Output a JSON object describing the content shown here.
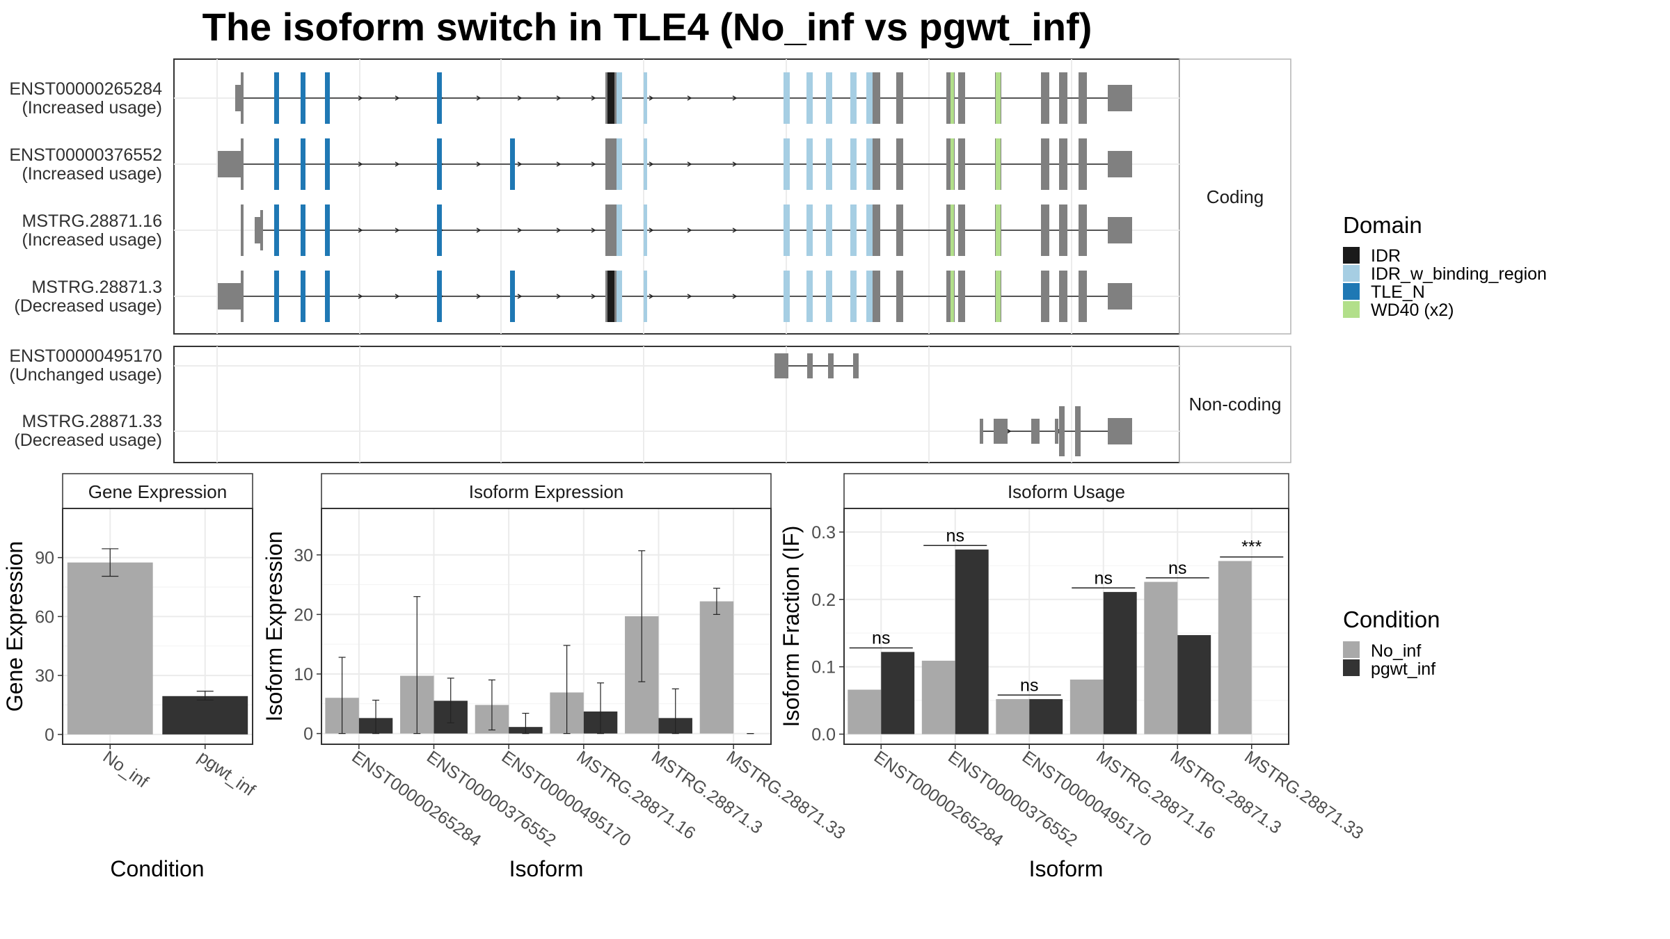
{
  "title": "The isoform switch in TLE4 (No_inf vs pgwt_inf)",
  "colors": {
    "IDR": "#1a1a1a",
    "IDR_w_binding_region": "#a6cee3",
    "TLE_N": "#1f78b4",
    "WD40 (x2)": "#b2df8a",
    "exon": "#808080",
    "No_inf": "#a9a9a9",
    "pgwt_inf": "#333333"
  },
  "transcript_panel": {
    "groups": [
      {
        "strip": "Coding",
        "isoforms": [
          {
            "id": "ENST00000265284",
            "usage": "(Increased usage)",
            "coding": true,
            "first": "small",
            "idr": true
          },
          {
            "id": "ENST00000376552",
            "usage": "(Increased usage)",
            "coding": true,
            "first": "big",
            "idr": false,
            "extra_tle": true
          },
          {
            "id": "MSTRG.28871.16",
            "usage": "(Increased usage)",
            "coding": true,
            "first": "small2",
            "idr": false
          },
          {
            "id": "MSTRG.28871.3",
            "usage": "(Decreased usage)",
            "coding": true,
            "first": "big",
            "idr": true,
            "extra_tle": true
          }
        ]
      },
      {
        "strip": "Non-coding",
        "isoforms": [
          {
            "id": "ENST00000495170",
            "usage": "(Unchanged usage)",
            "coding": false,
            "kind": "short"
          },
          {
            "id": "MSTRG.28871.33",
            "usage": "(Decreased usage)",
            "coding": false,
            "kind": "tail"
          }
        ]
      }
    ]
  },
  "legend_domain": {
    "title": "Domain",
    "items": [
      "IDR",
      "IDR_w_binding_region",
      "TLE_N",
      "WD40 (x2)"
    ]
  },
  "legend_condition": {
    "title": "Condition",
    "items": [
      "No_inf",
      "pgwt_inf"
    ]
  },
  "chart_data": [
    {
      "type": "bar",
      "panel": "Gene Expression",
      "categories": [
        "No_inf",
        "pgwt_inf"
      ],
      "values": [
        87.5,
        19.5
      ],
      "err_low": [
        80.5,
        17.5
      ],
      "err_high": [
        94.5,
        22.0
      ],
      "xlabel": "Condition",
      "ylabel": "Gene Expression",
      "ylim": [
        -5,
        115
      ],
      "yticks": [
        0,
        30,
        60,
        90
      ],
      "grid": true
    },
    {
      "type": "bar",
      "panel": "Isoform Expression",
      "categories": [
        "ENST00000265284",
        "ENST00000376552",
        "ENST00000495170",
        "MSTRG.28871.16",
        "MSTRG.28871.3",
        "MSTRG.28871.33"
      ],
      "series": [
        {
          "name": "No_inf",
          "values": [
            6.0,
            9.7,
            4.8,
            6.9,
            19.7,
            22.2
          ],
          "err_low": [
            0,
            0,
            0.6,
            0,
            8.7,
            20.0
          ],
          "err_high": [
            12.8,
            23.0,
            9.0,
            14.8,
            30.7,
            24.4
          ]
        },
        {
          "name": "pgwt_inf",
          "values": [
            2.6,
            5.5,
            1.1,
            3.7,
            2.6,
            0.0
          ],
          "err_low": [
            0,
            1.8,
            0,
            0,
            0,
            0
          ],
          "err_high": [
            5.6,
            9.3,
            3.4,
            8.5,
            7.5,
            0
          ]
        }
      ],
      "xlabel": "Isoform",
      "ylabel": "Isoform Expression",
      "ylim": [
        -1.8,
        37.8
      ],
      "yticks": [
        0,
        10,
        20,
        30
      ],
      "grid": true
    },
    {
      "type": "bar",
      "panel": "Isoform Usage",
      "categories": [
        "ENST00000265284",
        "ENST00000376552",
        "ENST00000495170",
        "MSTRG.28871.16",
        "MSTRG.28871.3",
        "MSTRG.28871.33"
      ],
      "series": [
        {
          "name": "No_inf",
          "values": [
            0.066,
            0.109,
            0.052,
            0.081,
            0.226,
            0.257
          ]
        },
        {
          "name": "pgwt_inf",
          "values": [
            0.122,
            0.274,
            0.052,
            0.211,
            0.147,
            0.0
          ]
        }
      ],
      "significance": [
        "ns",
        "ns",
        "ns",
        "ns",
        "ns",
        "***"
      ],
      "xlabel": "Isoform",
      "ylabel": "Isoform Fraction (IF)",
      "ylim": [
        -0.015,
        0.335
      ],
      "yticks": [
        0.0,
        0.1,
        0.2,
        0.3
      ],
      "ytick_labels": [
        "0.0",
        "0.1",
        "0.2",
        "0.3"
      ],
      "grid": true
    }
  ]
}
